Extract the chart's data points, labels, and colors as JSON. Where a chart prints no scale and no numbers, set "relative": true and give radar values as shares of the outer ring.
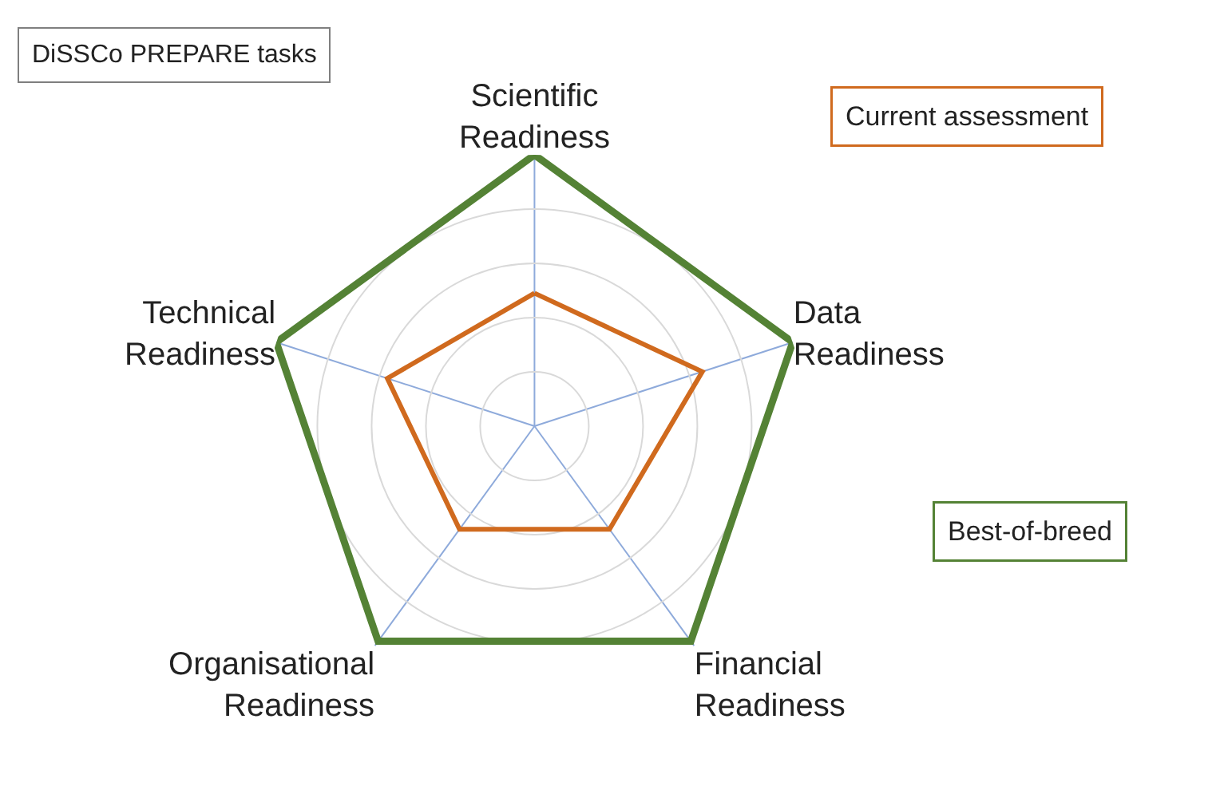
{
  "chart_data": {
    "type": "radar",
    "relative": true,
    "categories": [
      "Scientific Readiness",
      "Data Readiness",
      "Financial Readiness",
      "Organisational Readiness",
      "Technical Readiness"
    ],
    "series": [
      {
        "name": "Current assessment",
        "color": "#d06a1e",
        "values": [
          0.49,
          0.65,
          0.47,
          0.47,
          0.57
        ]
      },
      {
        "name": "Best-of-breed",
        "color": "#548235",
        "values": [
          1,
          1,
          0.98,
          0.98,
          1
        ]
      }
    ],
    "annotations": [
      "DiSSCo PREPARE tasks"
    ],
    "grid": true,
    "legend": false,
    "marker": "none"
  }
}
